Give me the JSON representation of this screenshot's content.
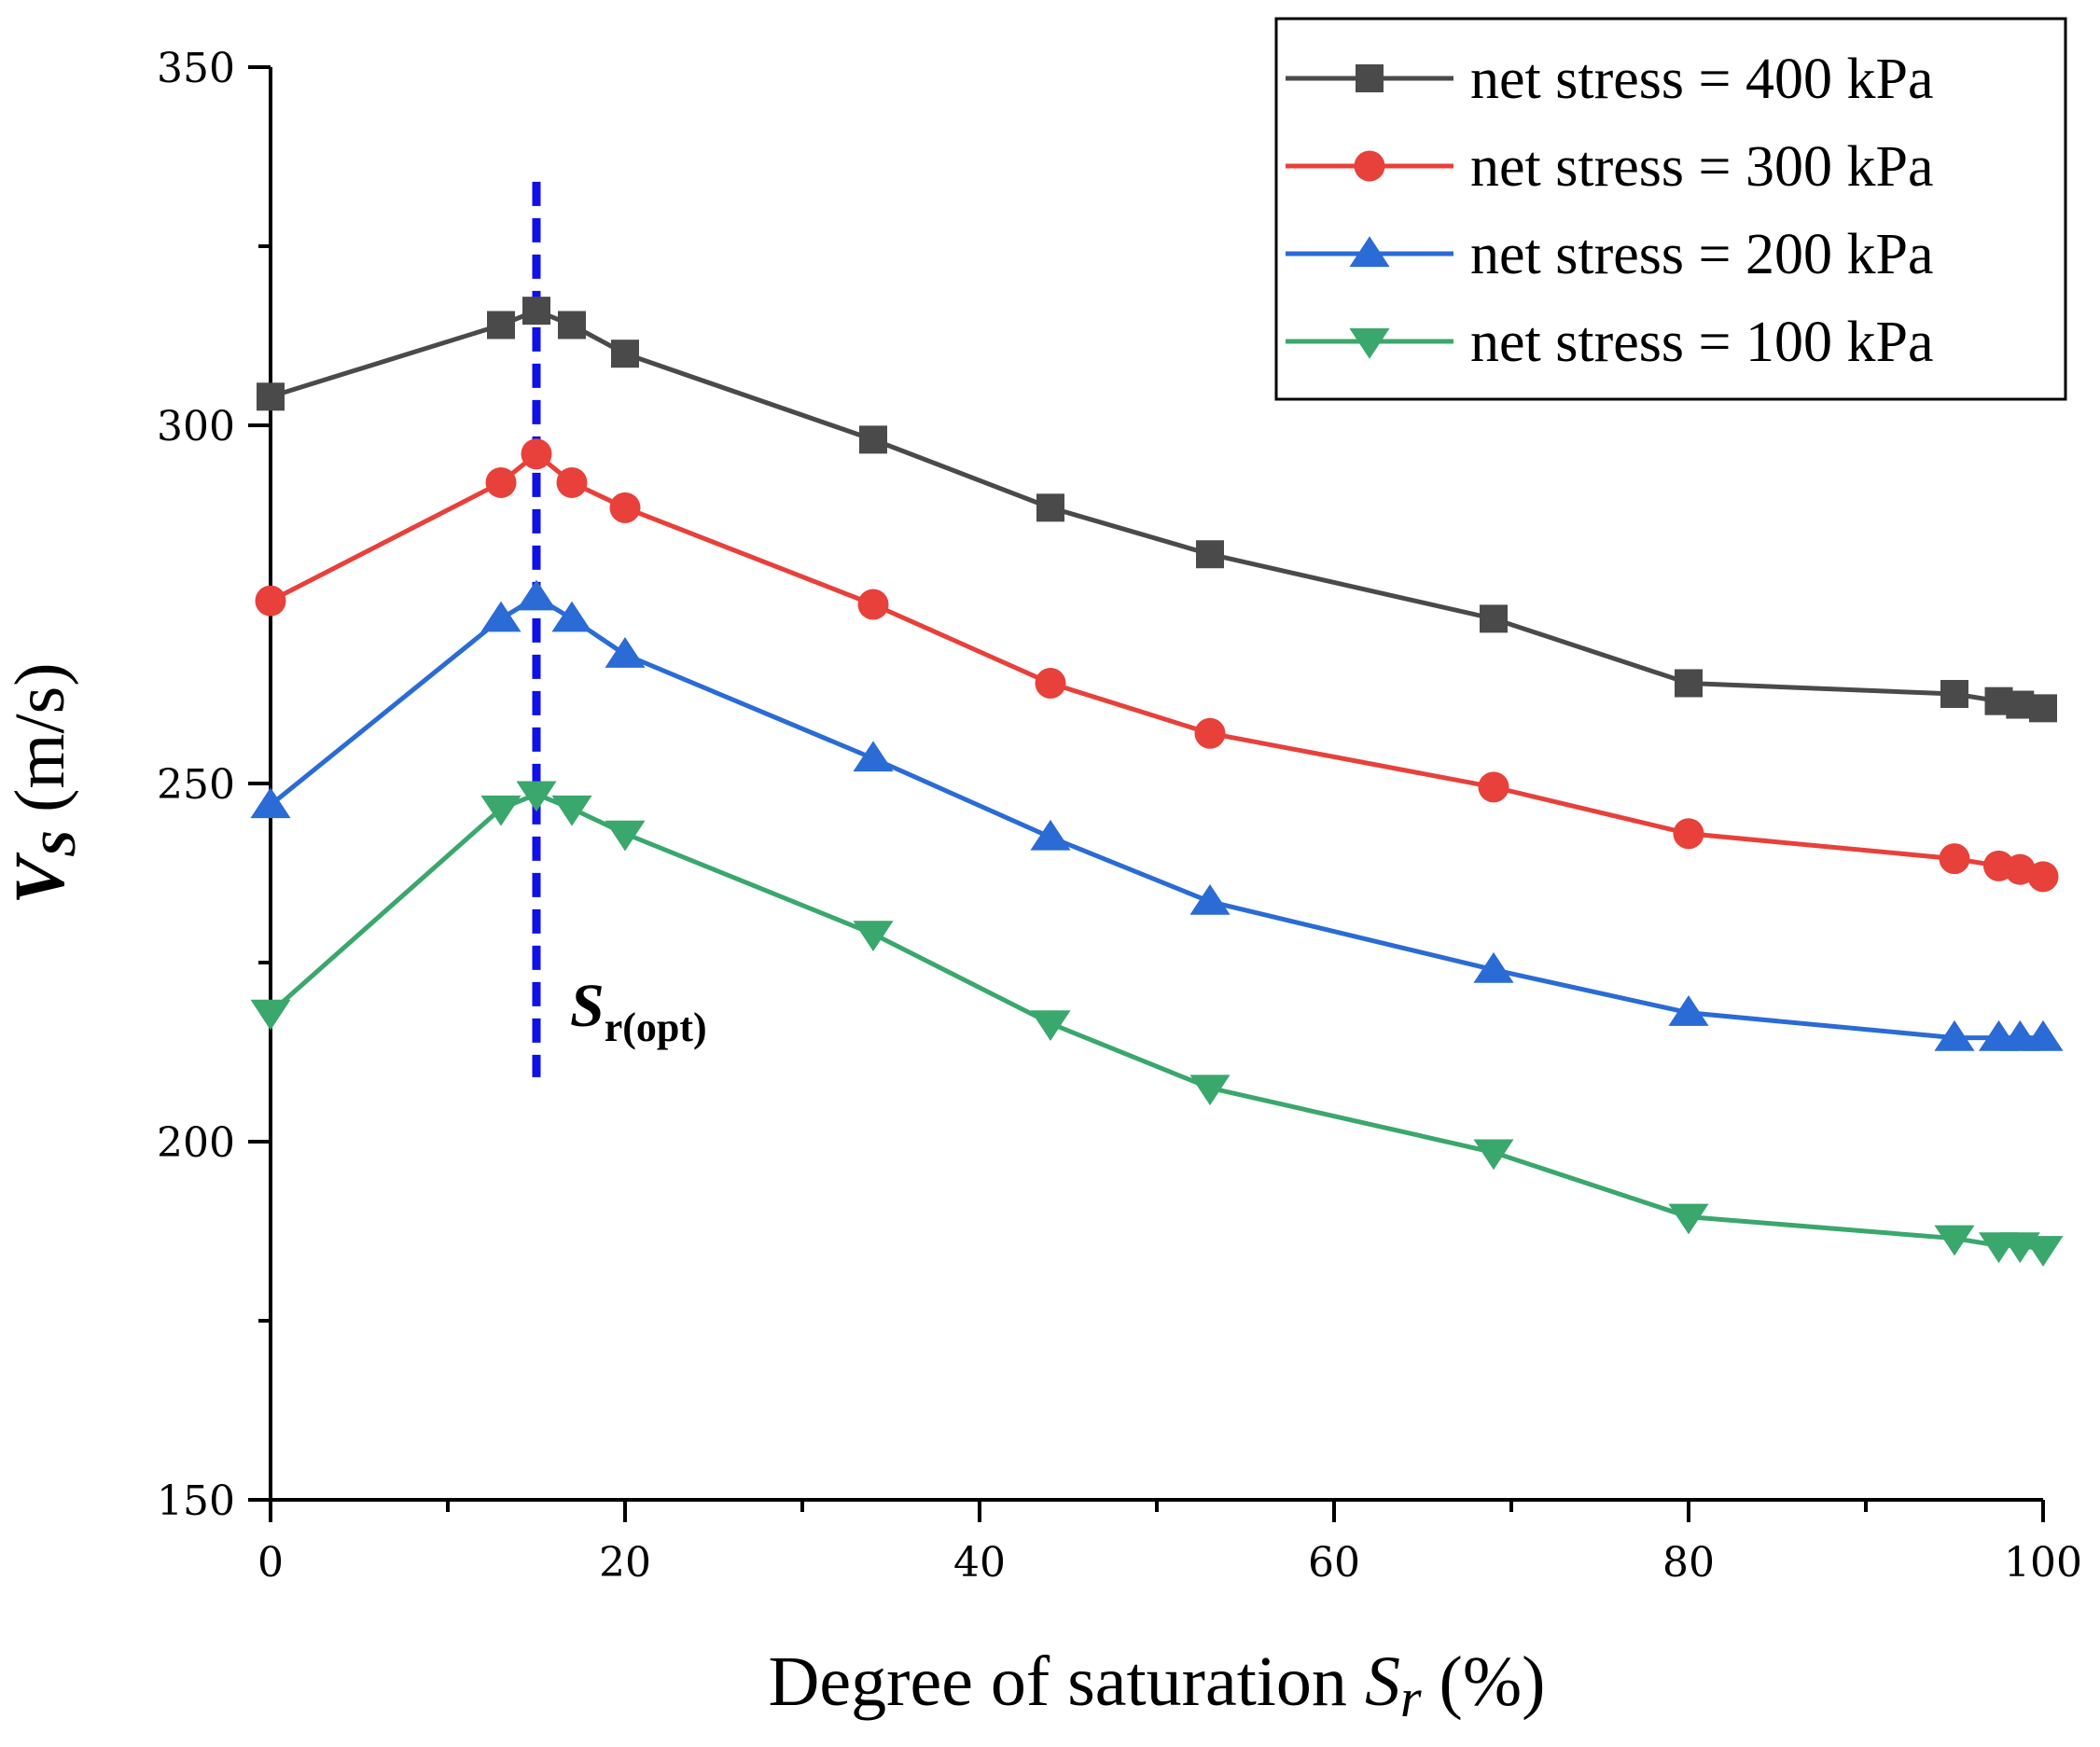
{
  "chart_data": {
    "type": "line",
    "title": "",
    "xlabel": "Degree of saturation",
    "xlabel_symbol": "S",
    "xlabel_subscript": "r",
    "xlabel_unit": "(%)",
    "ylabel": "V",
    "ylabel_subscript": "S",
    "ylabel_unit": "(m/s)",
    "xlim": [
      0,
      100
    ],
    "ylim": [
      150,
      350
    ],
    "xticks": [
      0,
      20,
      40,
      60,
      80,
      100
    ],
    "xticks_minor": [
      10,
      30,
      50,
      70,
      90
    ],
    "yticks": [
      150,
      200,
      250,
      300,
      350
    ],
    "yticks_minor": [
      175,
      225,
      275,
      325
    ],
    "x": [
      0,
      13,
      15,
      17,
      20,
      34,
      44,
      53,
      69,
      80,
      95,
      97.5,
      98.7,
      100
    ],
    "series": [
      {
        "name": "net stress = 400 kPa",
        "color": "#4a4a4a",
        "marker": "square",
        "values": [
          304,
          314,
          316,
          314,
          310,
          298,
          288.5,
          282,
          273,
          264,
          262.5,
          261.5,
          261,
          260.5
        ]
      },
      {
        "name": "net stress = 300 kPa",
        "color": "#e8403a",
        "marker": "circle",
        "values": [
          275.5,
          292,
          296,
          292,
          288.5,
          275,
          264,
          257,
          249.5,
          243,
          239.5,
          238.5,
          238,
          237
        ]
      },
      {
        "name": "net stress = 200 kPa",
        "color": "#2a6bd6",
        "marker": "triangle-up",
        "values": [
          247,
          273,
          276,
          273,
          268,
          253.5,
          242.5,
          233.5,
          224,
          218,
          214.5,
          214.5,
          214.5,
          214.5
        ]
      },
      {
        "name": "net stress = 100 kPa",
        "color": "#3aa76d",
        "marker": "triangle-down",
        "values": [
          218,
          246.5,
          248.5,
          246.5,
          243,
          229,
          216.5,
          207.5,
          198.5,
          189.5,
          186.5,
          185.5,
          185.5,
          185
        ]
      }
    ],
    "reference_line": {
      "x": 15,
      "y_range": [
        209,
        334
      ],
      "color": "#1010e8",
      "style": "dashed",
      "label": "S",
      "label_subscript": "r(opt)"
    },
    "legend_position": "top-right",
    "grid": false
  }
}
